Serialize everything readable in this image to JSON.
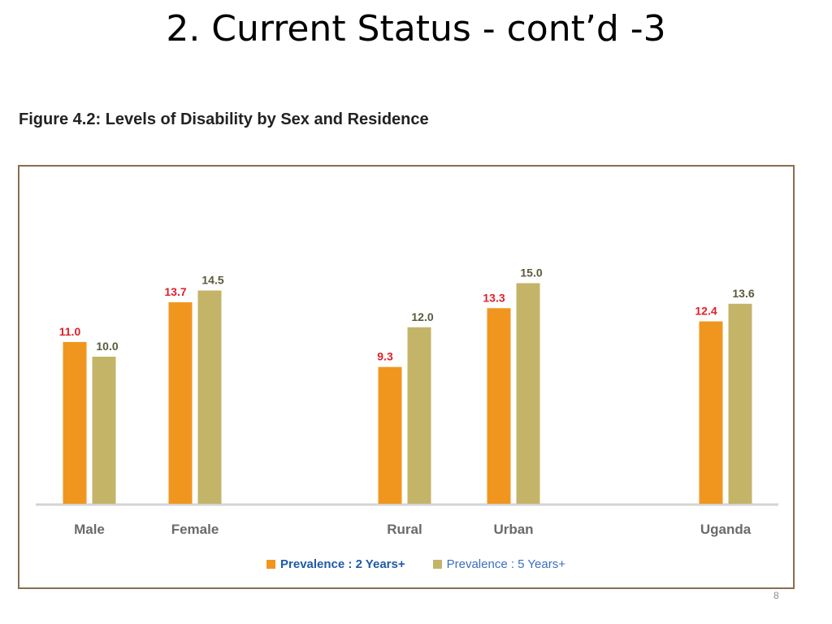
{
  "slide": {
    "title": "2. Current Status - cont’d -3",
    "page_number": "8"
  },
  "figure": {
    "caption": "Figure 4.2: Levels of Disability by Sex and Residence"
  },
  "colors": {
    "series_2yr": "#F0961E",
    "series_5yr": "#C4B468",
    "label_2yr": "#E0202A",
    "label_5yr": "#5A5A3A",
    "category_text": "#6A6A6A",
    "frame": "#8A6D4F"
  },
  "chart_data": {
    "type": "bar",
    "categories": [
      "Male",
      "Female",
      "Rural",
      "Urban",
      "Uganda"
    ],
    "series": [
      {
        "name": "Prevalence : 2 Years+",
        "values": [
          11.0,
          13.7,
          9.3,
          13.3,
          12.4
        ]
      },
      {
        "name": "Prevalence : 5 Years+",
        "values": [
          10.0,
          14.5,
          12.0,
          15.0,
          13.6
        ]
      }
    ],
    "value_labels": [
      [
        "11.0",
        "13.7",
        "9.3",
        "13.3",
        "12.4"
      ],
      [
        "10.0",
        "14.5",
        "12.0",
        "15.0",
        "13.6"
      ]
    ],
    "legend_position": "bottom",
    "grid": false
  }
}
